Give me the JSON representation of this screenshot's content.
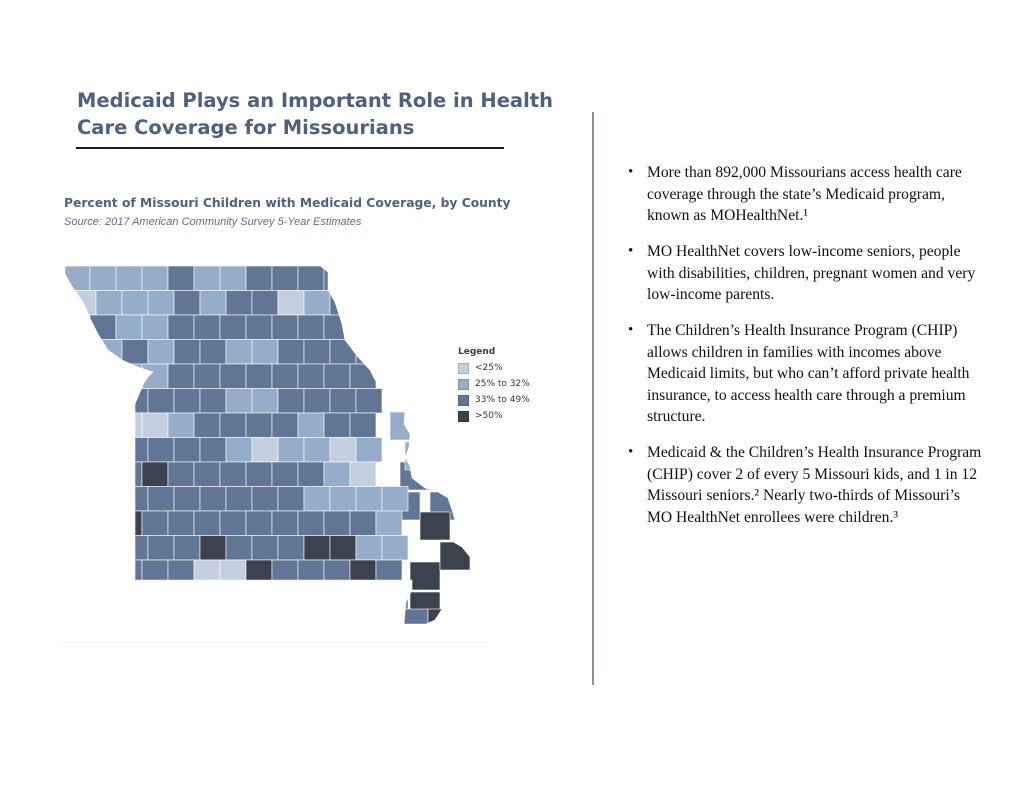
{
  "header": {
    "title_line1": "Medicaid Plays an Important Role in Health",
    "title_line2": "Care Coverage for Missourians"
  },
  "map": {
    "title": "Percent of Missouri Children with Medicaid Coverage, by County",
    "source": "Source: 2017 American Community Survey 5-Year Estimates",
    "legend": {
      "title": "Legend",
      "items": [
        {
          "label": "<25%",
          "color": "#c3cfdf"
        },
        {
          "label": "25% to 32%",
          "color": "#95adc8"
        },
        {
          "label": "33% to 49%",
          "color": "#607694"
        },
        {
          "label": ">50%",
          "color": "#3b414d"
        }
      ]
    }
  },
  "bullets": [
    "More than 892,000 Missourians access health care coverage through the state’s Medicaid program, known as MOHealthNet.¹",
    "MO HealthNet covers low-income seniors, people with disabilities, children, pregnant women and very low-income parents.",
    "The Children’s Health Insurance Program (CHIP) allows children in families with incomes above Medicaid limits, but who can’t afford private health insurance, to access health care through a premium structure.",
    "Medicaid & the Children’s Health Insurance Program (CHIP) cover 2 of every 5 Missouri kids, and 1 in 12 Missouri seniors.²  Nearly two-thirds of Missouri’s MO HealthNet enrollees were children.³"
  ]
}
